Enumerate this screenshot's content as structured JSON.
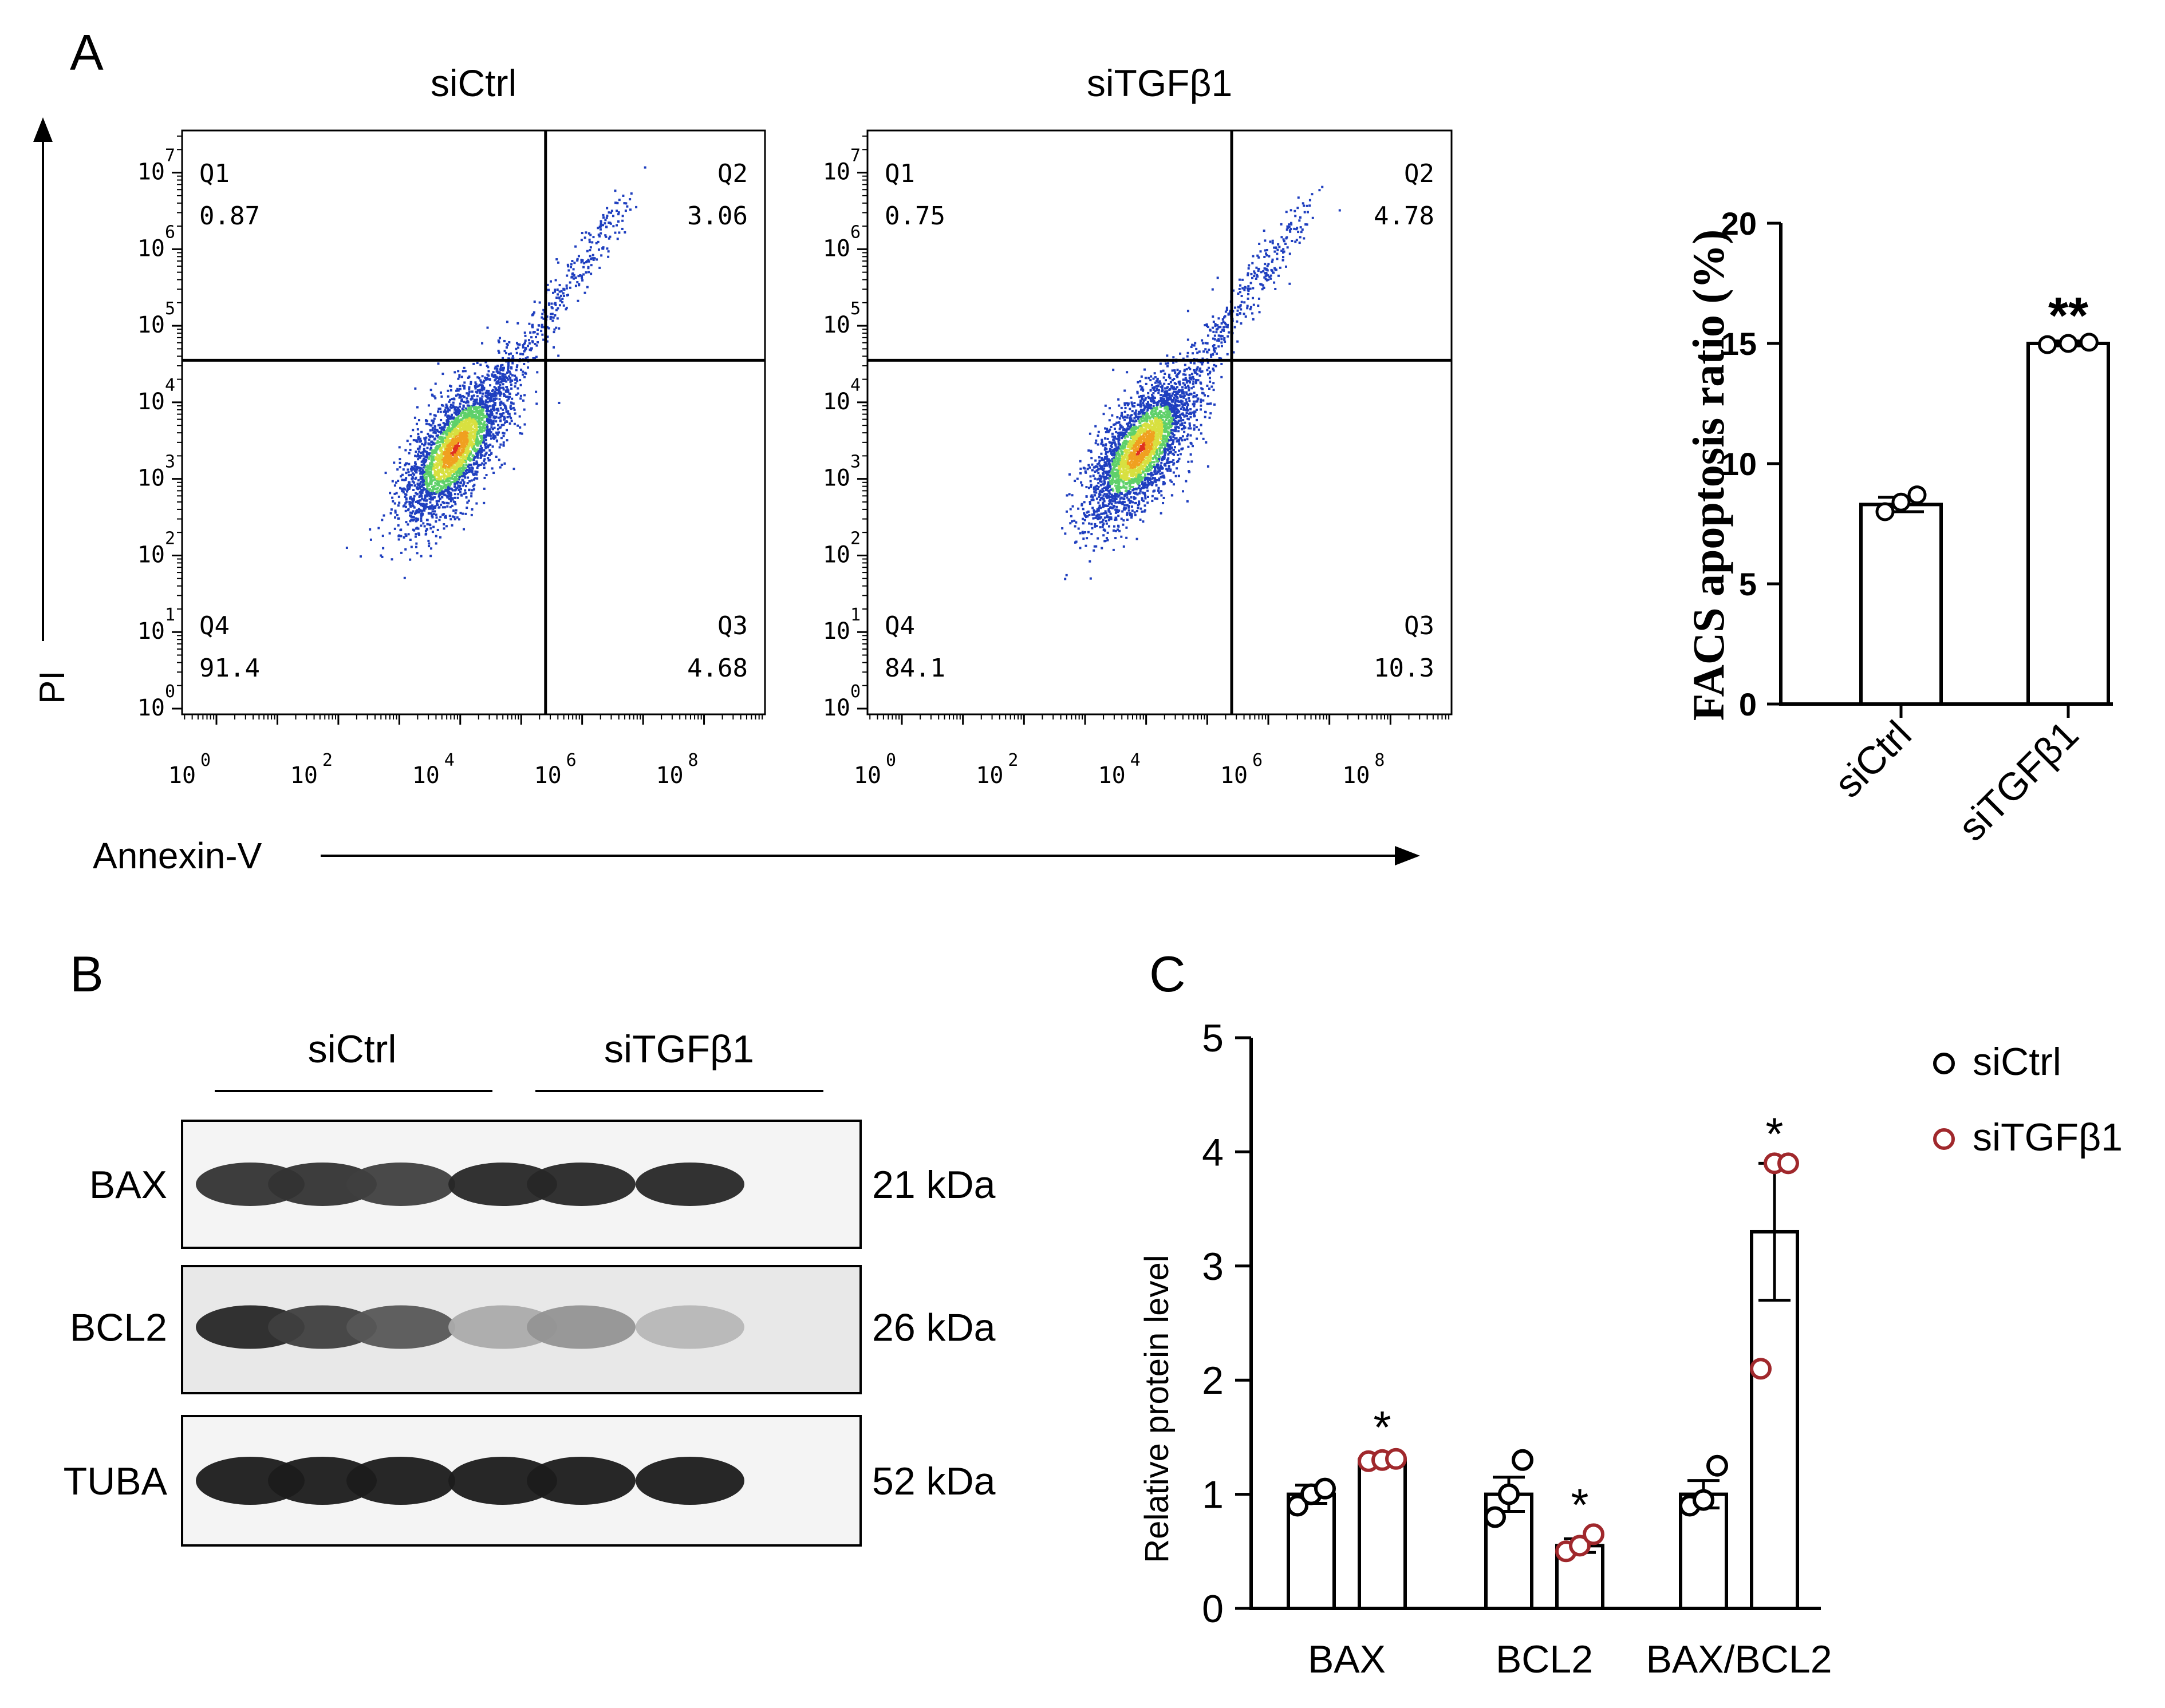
{
  "panels": {
    "A": "A",
    "B": "B",
    "C": "C"
  },
  "flow": {
    "y_axis_label": "PI",
    "x_axis_label": "Annexin-V",
    "tick_labels": [
      "0",
      "2",
      "4",
      "6",
      "8"
    ],
    "y_tick_labels": [
      "0",
      "1",
      "2",
      "3",
      "4",
      "5",
      "6",
      "7"
    ],
    "tick_base": "10",
    "plots": [
      {
        "title": "siCtrl",
        "quadrants": [
          {
            "name": "Q1",
            "value": "0.87"
          },
          {
            "name": "Q2",
            "value": "3.06"
          },
          {
            "name": "Q3",
            "value": "4.68"
          },
          {
            "name": "Q4",
            "value": "91.4"
          }
        ]
      },
      {
        "title": "siTGFβ1",
        "quadrants": [
          {
            "name": "Q1",
            "value": "0.75"
          },
          {
            "name": "Q2",
            "value": "4.78"
          },
          {
            "name": "Q3",
            "value": "10.3"
          },
          {
            "name": "Q4",
            "value": "84.1"
          }
        ]
      }
    ]
  },
  "western": {
    "groups": [
      "siCtrl",
      "siTGFβ1"
    ],
    "rows": [
      {
        "protein": "BAX",
        "size": "21 kDa",
        "intensity": [
          0.85,
          0.85,
          0.8,
          0.9,
          0.9,
          0.9
        ]
      },
      {
        "protein": "BCL2",
        "size": "26 kDa",
        "intensity": [
          0.9,
          0.8,
          0.7,
          0.35,
          0.45,
          0.3
        ]
      },
      {
        "protein": "TUBA",
        "size": "52 kDa",
        "intensity": [
          0.95,
          0.95,
          0.95,
          0.95,
          0.95,
          0.95
        ]
      }
    ]
  },
  "chart_data": [
    {
      "type": "bar",
      "ylabel": "FACS apoptosis ratio (%)",
      "categories": [
        "siCtrl",
        "siTGFβ1"
      ],
      "values": [
        8.3,
        15.0
      ],
      "error": [
        0.3,
        0.1
      ],
      "points": [
        [
          8.0,
          8.4,
          8.7
        ],
        [
          14.95,
          15.0,
          15.05
        ]
      ],
      "significance": [
        "",
        "**"
      ],
      "ylim": [
        0,
        20
      ],
      "yticks": [
        0,
        5,
        10,
        15,
        20
      ]
    },
    {
      "type": "bar",
      "ylabel": "Relative protein level",
      "categories": [
        "BAX",
        "BCL2",
        "BAX/BCL2"
      ],
      "series": [
        {
          "name": "siCtrl",
          "values": [
            1.0,
            1.0,
            1.0
          ],
          "error": [
            0.08,
            0.15,
            0.12
          ],
          "points": [
            [
              0.9,
              1.0,
              1.05
            ],
            [
              0.8,
              1.0,
              1.3
            ],
            [
              0.9,
              0.95,
              1.25
            ]
          ],
          "color": "#000000"
        },
        {
          "name": "siTGFβ1",
          "values": [
            1.3,
            0.55,
            3.3
          ],
          "error": [
            0.03,
            0.06,
            0.6
          ],
          "points": [
            [
              1.29,
              1.3,
              1.31
            ],
            [
              0.5,
              0.55,
              0.65
            ],
            [
              2.1,
              3.9,
              3.9
            ]
          ],
          "color": "#a0282c"
        }
      ],
      "significance": [
        [
          "",
          "*"
        ],
        [
          "",
          "*"
        ],
        [
          "",
          "*"
        ]
      ],
      "ylim": [
        0,
        5
      ],
      "yticks": [
        0,
        1,
        2,
        3,
        4,
        5
      ]
    }
  ]
}
